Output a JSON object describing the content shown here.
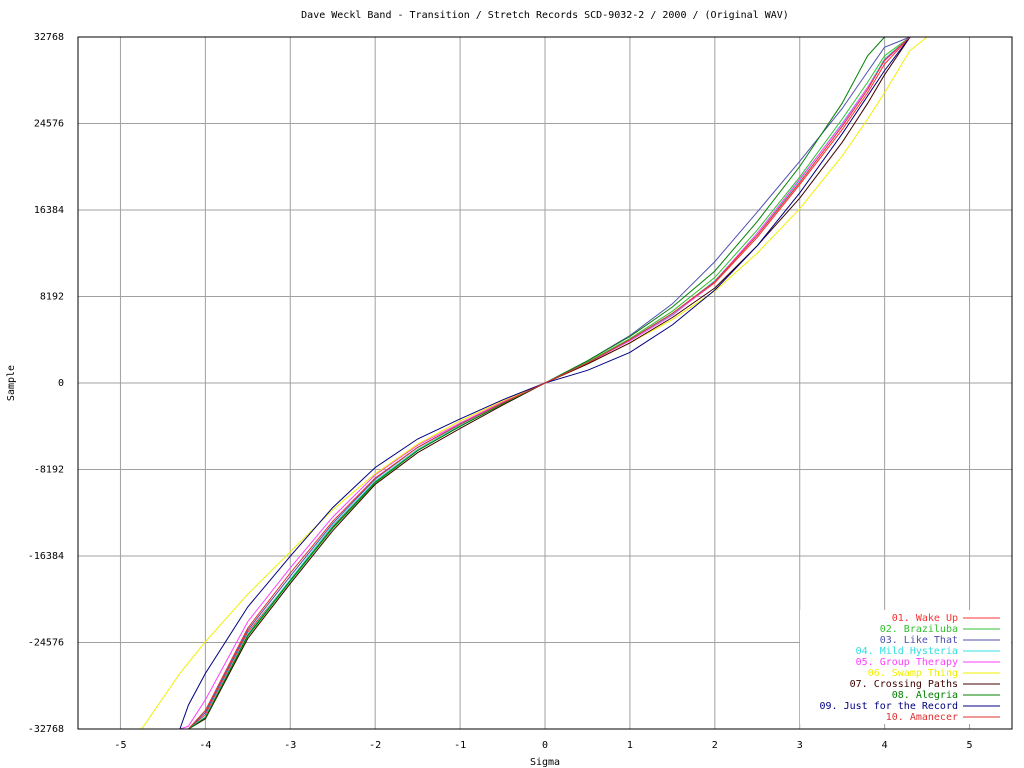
{
  "chart_data": {
    "type": "line",
    "title": "Dave Weckl Band - Transition / Stretch Records SCD-9032-2 / 2000 / (Original WAV)",
    "x_label": "Sigma",
    "y_label": "Sample",
    "xlim": [
      -5.5,
      5.5
    ],
    "ylim": [
      -32768,
      32768
    ],
    "xticks": [
      -5,
      -4,
      -3,
      -2,
      -1,
      0,
      1,
      2,
      3,
      4,
      5
    ],
    "yticks": [
      -32768,
      -24576,
      -16384,
      -8192,
      0,
      8192,
      16384,
      24576,
      32768
    ],
    "grid": true,
    "legend": "lower right",
    "x": [
      -5.5,
      -4.75,
      -4.3,
      -4.2,
      -4,
      -3.5,
      -3,
      -2.5,
      -2,
      -1.5,
      -1,
      -0.5,
      0,
      0.5,
      1,
      1.5,
      2,
      2.5,
      3,
      3.5,
      3.8,
      4,
      4.3,
      4.5,
      5.5
    ],
    "series": [
      {
        "name": "01. Wake Up",
        "color": "#ff3030",
        "values": [
          -32768,
          -32768,
          -32768,
          -32768,
          -31400,
          -23600,
          -18700,
          -13600,
          -9300,
          -6300,
          -4000,
          -1900,
          0,
          1900,
          4100,
          6500,
          9500,
          13800,
          18800,
          24000,
          27500,
          30200,
          32768,
          32768,
          32768
        ]
      },
      {
        "name": "02. Braziluba",
        "color": "#30c030",
        "values": [
          -32768,
          -32768,
          -32768,
          -32768,
          -31800,
          -24000,
          -18800,
          -13800,
          -9500,
          -6400,
          -4100,
          -2000,
          0,
          2000,
          4200,
          6800,
          10000,
          14500,
          19500,
          25000,
          28500,
          31000,
          32768,
          32768,
          32768
        ]
      },
      {
        "name": "03. Like That",
        "color": "#5050b0",
        "values": [
          -32768,
          -32768,
          -32768,
          -32768,
          -31200,
          -23400,
          -18300,
          -13300,
          -9100,
          -6100,
          -3900,
          -1900,
          0,
          2100,
          4500,
          7500,
          11500,
          16200,
          21000,
          26000,
          29500,
          31800,
          32768,
          32768,
          32768
        ]
      },
      {
        "name": "04. Mild Hysteria",
        "color": "#30e0e0",
        "values": [
          -32768,
          -32768,
          -32768,
          -32768,
          -31600,
          -23800,
          -18600,
          -13500,
          -9300,
          -6300,
          -4000,
          -1900,
          0,
          1900,
          4000,
          6500,
          9700,
          14000,
          19200,
          24600,
          28000,
          30700,
          32768,
          32768,
          32768
        ]
      },
      {
        "name": "05. Group Therapy",
        "color": "#ff40ff",
        "values": [
          -32768,
          -32768,
          -32768,
          -32500,
          -30000,
          -22600,
          -17500,
          -12700,
          -8700,
          -5900,
          -3800,
          -1800,
          0,
          1900,
          4000,
          6400,
          9600,
          14200,
          19300,
          24500,
          28000,
          30500,
          32768,
          32768,
          32768
        ]
      },
      {
        "name": "06. Swamp Thing",
        "color": "#f0f000",
        "values": [
          -32768,
          -32768,
          -27500,
          -26500,
          -24500,
          -20000,
          -16000,
          -12000,
          -8600,
          -5800,
          -3600,
          -1700,
          0,
          1800,
          3800,
          6000,
          8700,
          12300,
          16500,
          21500,
          25000,
          27500,
          31500,
          32768,
          32768
        ]
      },
      {
        "name": "07. Crossing Paths",
        "color": "#400000",
        "values": [
          -32768,
          -32768,
          -32768,
          -32768,
          -31800,
          -24200,
          -19000,
          -14000,
          -9600,
          -6600,
          -4300,
          -2100,
          0,
          1800,
          3800,
          6200,
          9000,
          13000,
          17500,
          22800,
          26500,
          29200,
          32768,
          32768,
          32768
        ]
      },
      {
        "name": "08. Alegria",
        "color": "#008000",
        "values": [
          -32768,
          -32768,
          -32768,
          -32768,
          -31700,
          -23900,
          -18700,
          -13700,
          -9400,
          -6400,
          -4100,
          -2000,
          0,
          2100,
          4400,
          7200,
          10600,
          15300,
          20500,
          26500,
          31000,
          32768,
          32768,
          32768,
          32768
        ]
      },
      {
        "name": "09. Just for the Record",
        "color": "#000080",
        "values": [
          -32768,
          -32768,
          -32768,
          -30500,
          -27500,
          -21200,
          -16400,
          -11800,
          -8000,
          -5300,
          -3400,
          -1600,
          0,
          1200,
          2900,
          5500,
          8800,
          13000,
          18000,
          23600,
          27200,
          29600,
          32768,
          32768,
          32768
        ]
      },
      {
        "name": "10. Amanecer",
        "color": "#e03030",
        "values": [
          -32768,
          -32768,
          -32768,
          -32768,
          -31000,
          -23200,
          -18000,
          -13100,
          -9000,
          -6100,
          -3900,
          -1900,
          0,
          1900,
          4100,
          6600,
          9600,
          14000,
          19000,
          24300,
          27800,
          30600,
          32768,
          32768,
          32768
        ]
      }
    ]
  }
}
